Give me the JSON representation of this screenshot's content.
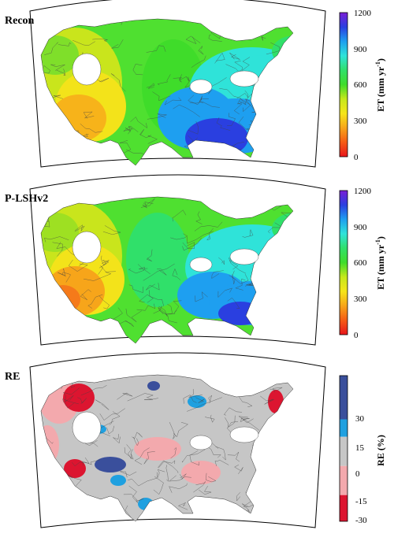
{
  "panels": [
    {
      "title": "Recon",
      "colorbar": {
        "label_main": "ET (mm yr",
        "label_sup": "-1",
        "label_close": ")",
        "ticks": [
          "1200",
          "900",
          "600",
          "300",
          "0"
        ],
        "palette": [
          "#7a1fd6",
          "#2a3fe0",
          "#1e9ff0",
          "#2fe3d9",
          "#30e06a",
          "#3fdc2a",
          "#c6e81c",
          "#f6e51a",
          "#f7a51a",
          "#f55b15",
          "#e8161c"
        ]
      }
    },
    {
      "title": "P-LSHv2",
      "colorbar": {
        "label_main": "ET (mm yr",
        "label_sup": "-1",
        "label_close": ")",
        "ticks": [
          "1200",
          "900",
          "600",
          "300",
          "0"
        ],
        "palette": [
          "#7a1fd6",
          "#2a3fe0",
          "#1e9ff0",
          "#2fe3d9",
          "#30e06a",
          "#3fdc2a",
          "#c6e81c",
          "#f6e51a",
          "#f7a51a",
          "#f55b15",
          "#e8161c"
        ]
      }
    },
    {
      "title": "RE",
      "colorbar": {
        "label_main": "RE (%)",
        "ticks": [
          "30",
          "15",
          "0",
          "-15",
          "-30"
        ],
        "classes": [
          "#3a4f9c",
          "#1fa0e0",
          "#c6c6c6",
          "#f3a9ad",
          "#dc1530"
        ]
      }
    }
  ]
}
